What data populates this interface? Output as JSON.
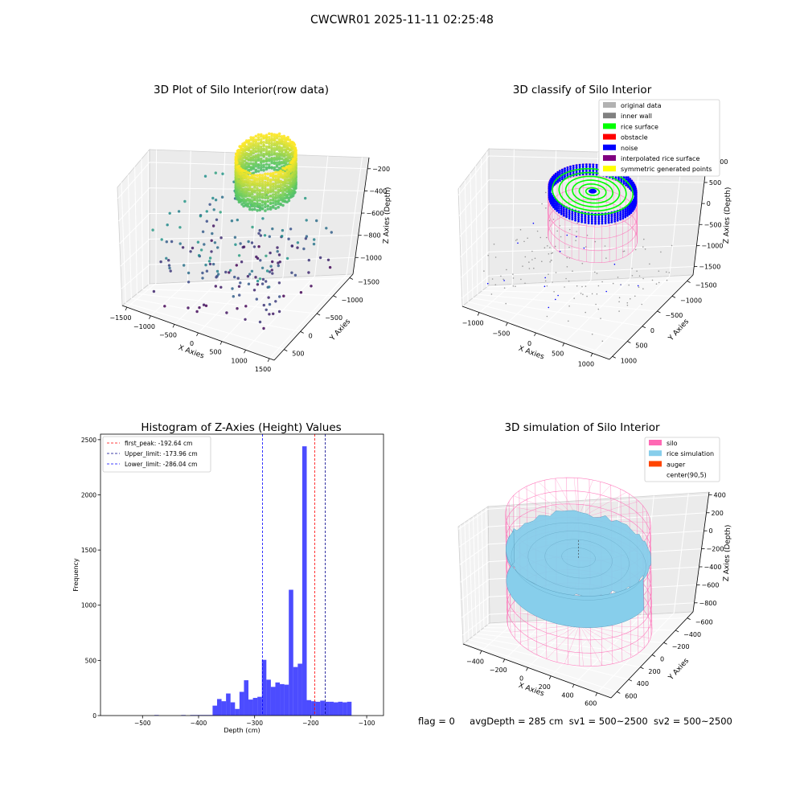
{
  "figure_title": "CWCWR01 2025-11-11 02:25:48",
  "footer": {
    "flag": "flag = 0",
    "avg_depth": "avgDepth = 285 cm",
    "sv1": "sv1 = 500~2500",
    "sv2": "sv2 = 500~2500"
  },
  "chart_data": [
    {
      "id": "raw",
      "type": "scatter",
      "title": "3D Plot of Silo Interior(row data)",
      "xlabel": "X Axies",
      "ylabel": "Y Axies",
      "zlabel": "Z Axies (Depth)",
      "x_ticks": [
        -1500,
        -1000,
        -500,
        0,
        500,
        1000,
        1500
      ],
      "y_ticks": [
        -1500,
        -1000,
        -500,
        0,
        500
      ],
      "z_ticks": [
        -1000,
        -800,
        -600,
        -400,
        -200
      ],
      "x_range": [
        -1600,
        1600
      ],
      "y_range": [
        -1600,
        800
      ],
      "z_range": [
        -1150,
        -100
      ],
      "colormap": "viridis"
    },
    {
      "id": "classify",
      "type": "scatter",
      "title": "3D classify of Silo Interior",
      "xlabel": "X Axies",
      "ylabel": "Y Axies",
      "zlabel": "Z Axies (Depth)",
      "x_ticks": [
        -1000,
        -500,
        0,
        500,
        1000
      ],
      "y_ticks": [
        -1500,
        -1000,
        -500,
        0,
        500,
        1000
      ],
      "z_ticks": [
        -1500,
        -1000,
        -500,
        0,
        500,
        1000
      ],
      "x_range": [
        -1300,
        1300
      ],
      "y_range": [
        -1700,
        1100
      ],
      "z_range": [
        -1700,
        1150
      ],
      "legend_position": "top-right",
      "legend": [
        {
          "label": "original data",
          "color": "#b2b2b2"
        },
        {
          "label": "inner wall",
          "color": "#808080"
        },
        {
          "label": "rice surface",
          "color": "#00ff00"
        },
        {
          "label": "obstacle",
          "color": "#ff0000"
        },
        {
          "label": "noise",
          "color": "#0000ff"
        },
        {
          "label": "interpolated rice surface",
          "color": "#800080"
        },
        {
          "label": "symmetric generated points",
          "color": "#ffff00"
        }
      ]
    },
    {
      "id": "histogram",
      "type": "bar",
      "title": "Histogram of Z-Axies (Height) Values",
      "xlabel": "Depth (cm)",
      "ylabel": "Frequency",
      "xlim": [
        -575,
        -70
      ],
      "ylim": [
        0,
        2550
      ],
      "x_ticks": [
        -500,
        -400,
        -300,
        -200,
        -100
      ],
      "y_ticks": [
        0,
        500,
        1000,
        1500,
        2000,
        2500
      ],
      "bin_width": 8,
      "bin_start": -575,
      "values": [
        0,
        0,
        0,
        0,
        0,
        0,
        0,
        0,
        0,
        0,
        0,
        0,
        5,
        0,
        0,
        0,
        0,
        0,
        5,
        0,
        5,
        5,
        5,
        5,
        5,
        90,
        150,
        130,
        200,
        120,
        60,
        215,
        320,
        145,
        160,
        170,
        505,
        325,
        260,
        300,
        285,
        280,
        1140,
        440,
        470,
        2440,
        140,
        130,
        125,
        135,
        125,
        125,
        120,
        125,
        120,
        125
      ],
      "legend_position": "top-left",
      "vlines": [
        {
          "label": "first_peak: -192.64 cm",
          "x": -192.64,
          "color": "#ff0000"
        },
        {
          "label": "Upper_limit: -173.96 cm",
          "x": -173.96,
          "color": "#00008b"
        },
        {
          "label": "Lower_limit: -286.04 cm",
          "x": -286.04,
          "color": "#0000ff"
        }
      ],
      "bar_color": "#0000ff"
    },
    {
      "id": "simulation",
      "type": "surface",
      "title": "3D simulation of Silo Interior",
      "xlabel": "X Axies",
      "ylabel": "Y Axies",
      "zlabel": "Z Axies (Depth)",
      "x_ticks": [
        -400,
        -200,
        0,
        200,
        400,
        600
      ],
      "y_ticks": [
        -600,
        -400,
        -200,
        0,
        200,
        400,
        600
      ],
      "z_ticks": [
        -800,
        -600,
        -400,
        -200,
        0,
        200,
        400
      ],
      "x_range": [
        -560,
        720
      ],
      "y_range": [
        -700,
        700
      ],
      "z_range": [
        -900,
        430
      ],
      "legend_position": "top-right",
      "legend": [
        {
          "label": "silo",
          "color": "#ff69b4"
        },
        {
          "label": "rice simulation",
          "color": "#87ceeb"
        },
        {
          "label": "auger",
          "color": "#ff4500"
        },
        {
          "label": "center(90,5)",
          "color": "none"
        }
      ]
    }
  ]
}
